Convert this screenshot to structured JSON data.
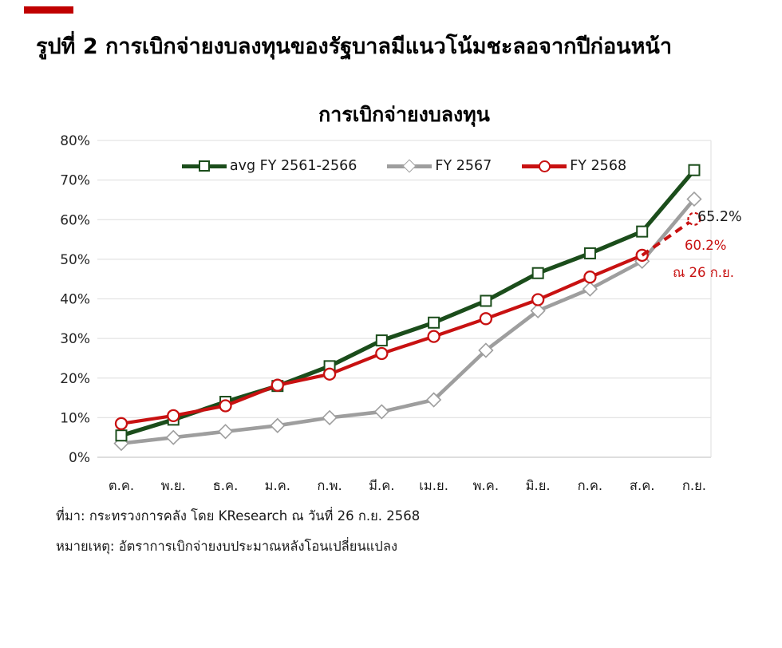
{
  "page": {
    "title": "รูปที่ 2 การเบิกจ่ายงบลงทุนของรัฐบาลมีแนวโน้มชะลอจากปีก่อนหน้า",
    "accent_color": "#C00000"
  },
  "chart_data": {
    "type": "line",
    "title": "การเบิกจ่ายงบลงทุน",
    "xlabel": "",
    "ylabel": "",
    "ylim": [
      0,
      80
    ],
    "grid": "horizontal",
    "legend_position": "top-center",
    "y_ticks": [
      "0%",
      "10%",
      "20%",
      "30%",
      "40%",
      "50%",
      "60%",
      "70%",
      "80%"
    ],
    "categories": [
      "ต.ค.",
      "พ.ย.",
      "ธ.ค.",
      "ม.ค.",
      "ก.พ.",
      "มี.ค.",
      "เม.ย.",
      "พ.ค.",
      "มิ.ย.",
      "ก.ค.",
      "ส.ค.",
      "ก.ย."
    ],
    "series": [
      {
        "name": "avg FY 2561-2566",
        "color": "#1B4D1B",
        "marker": "square",
        "values": [
          5.5,
          9.5,
          14,
          18,
          23,
          29.5,
          34,
          39.5,
          46.5,
          51.5,
          57,
          72.5
        ]
      },
      {
        "name": "FY 2567",
        "color": "#9E9E9E",
        "marker": "diamond",
        "values": [
          3.5,
          5,
          6.5,
          8,
          10,
          11.5,
          14.5,
          27,
          37,
          42.5,
          49.5,
          65.2
        ]
      },
      {
        "name": "FY 2568",
        "color": "#C81111",
        "marker": "circle",
        "values": [
          8.5,
          10.5,
          13,
          18.2,
          21,
          26.2,
          30.5,
          35,
          39.8,
          45.5,
          51,
          null
        ],
        "dashed_projection": {
          "category": "ก.ย.",
          "value": 60.2
        }
      }
    ],
    "annotations": [
      {
        "text": "65.2%",
        "color": "#1A1A1A"
      },
      {
        "text": "60.2%",
        "color": "#C81111"
      },
      {
        "text": "ณ 26 ก.ย.",
        "color": "#C81111"
      }
    ]
  },
  "footer": {
    "source": "ที่มา: กระทรวงการคลัง โดย KResearch ณ วันที่ 26 ก.ย. 2568",
    "note": "หมายเหตุ: อัตราการเบิกจ่ายงบประมาณหลังโอนเปลี่ยนแปลง"
  }
}
